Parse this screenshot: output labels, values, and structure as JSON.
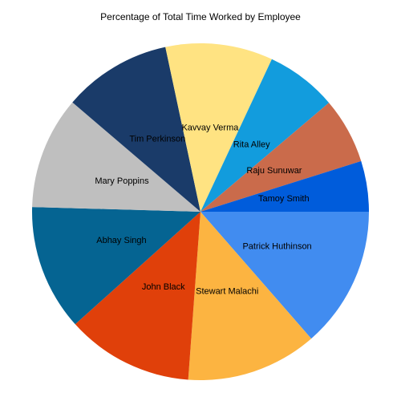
{
  "chart_data": {
    "type": "pie",
    "title": "Percentage of Total Time Worked by Employee",
    "start_angle_deg": 0,
    "direction": "clockwise",
    "slices": [
      {
        "label": "Patrick Huthinson",
        "value": 13.7,
        "color": "#418CF0"
      },
      {
        "label": "Stewart Malachi",
        "value": 12.7,
        "color": "#FCB441"
      },
      {
        "label": "John Black",
        "value": 12.3,
        "color": "#E0400A"
      },
      {
        "label": "Abhay Singh",
        "value": 12.2,
        "color": "#056492"
      },
      {
        "label": "Mary Poppins",
        "value": 10.9,
        "color": "#BFBFBF"
      },
      {
        "label": "Tim Perkinson",
        "value": 10.5,
        "color": "#1A3B69"
      },
      {
        "label": "Kavvay Verma",
        "value": 10.4,
        "color": "#FFE382"
      },
      {
        "label": "Rita Alley",
        "value": 6.9,
        "color": "#129CDD"
      },
      {
        "label": "Raju Sunuwar",
        "value": 6.4,
        "color": "#CA6B4B"
      },
      {
        "label": "Tamoy Smith",
        "value": 4.9,
        "color": "#005CDB"
      }
    ]
  }
}
